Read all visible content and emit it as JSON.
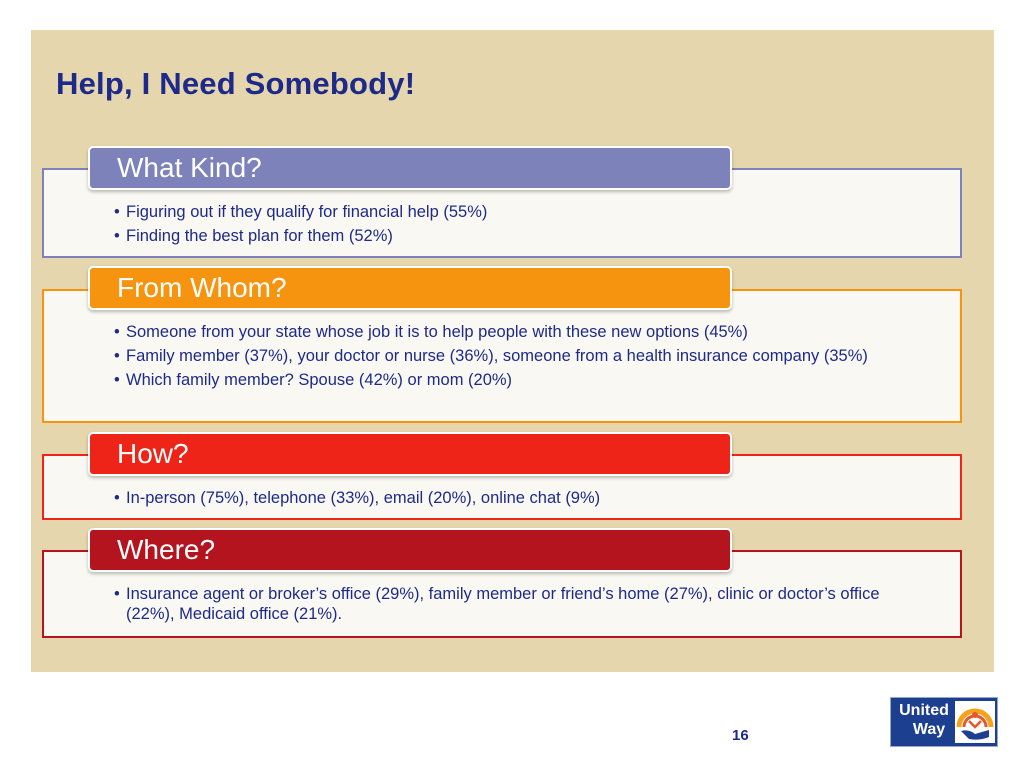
{
  "slide": {
    "title": "Help, I Need Somebody!",
    "page_number": "16"
  },
  "sections": [
    {
      "heading": "What Kind?",
      "color": "#7d82bb",
      "bullets": [
        "Figuring out if they qualify for financial help (55%)",
        "Finding the best plan for them (52%)"
      ]
    },
    {
      "heading": "From Whom?",
      "color": "#f7940f",
      "bullets": [
        "Someone from your state whose job it is to help people with these new options (45%)",
        "Family member (37%), your doctor or nurse (36%), someone from a health insurance company (35%)",
        "Which family member? Spouse (42%) or mom (20%)"
      ]
    },
    {
      "heading": "How?",
      "color": "#ee2418",
      "bullets": [
        "In-person (75%), telephone (33%), email (20%), online chat (9%)"
      ]
    },
    {
      "heading": "Where?",
      "color": "#b3141e",
      "bullets": [
        "Insurance agent or broker’s office (29%), family member or friend’s home (27%), clinic or doctor’s office (22%), Medicaid office (21%)."
      ]
    }
  ],
  "logo": {
    "line1": "United",
    "line2": "Way",
    "icon": "united-way-hand-rainbow-icon",
    "background": "#1d3f8f"
  }
}
